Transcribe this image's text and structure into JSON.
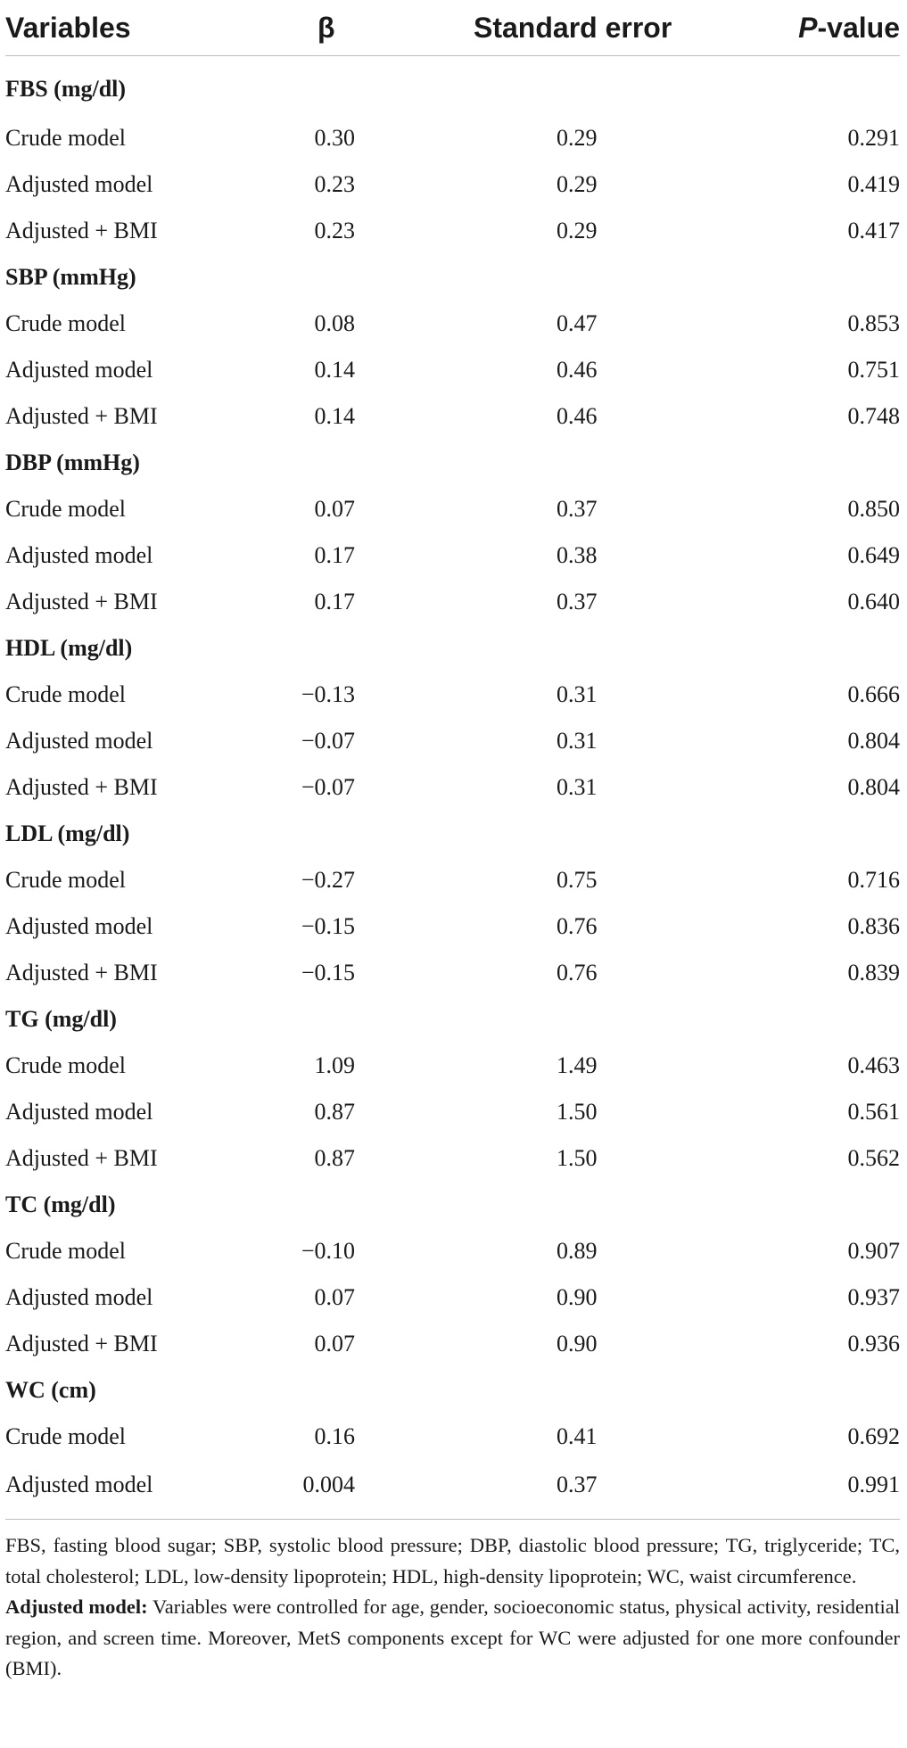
{
  "headers": {
    "variables": "Variables",
    "beta": "β",
    "se": "Standard error",
    "p_italic": "P",
    "p_rest": "-value"
  },
  "groups": [
    {
      "title": "FBS (mg/dl)",
      "rows": [
        {
          "model": "Crude model",
          "beta": "0.30",
          "se": "0.29",
          "p": "0.291"
        },
        {
          "model": "Adjusted model",
          "beta": "0.23",
          "se": "0.29",
          "p": "0.419"
        },
        {
          "model": "Adjusted + BMI",
          "beta": "0.23",
          "se": "0.29",
          "p": "0.417"
        }
      ]
    },
    {
      "title": "SBP (mmHg)",
      "rows": [
        {
          "model": "Crude model",
          "beta": "0.08",
          "se": "0.47",
          "p": "0.853"
        },
        {
          "model": "Adjusted model",
          "beta": "0.14",
          "se": "0.46",
          "p": "0.751"
        },
        {
          "model": "Adjusted + BMI",
          "beta": "0.14",
          "se": "0.46",
          "p": "0.748"
        }
      ]
    },
    {
      "title": "DBP (mmHg)",
      "rows": [
        {
          "model": "Crude model",
          "beta": "0.07",
          "se": "0.37",
          "p": "0.850"
        },
        {
          "model": "Adjusted model",
          "beta": "0.17",
          "se": "0.38",
          "p": "0.649"
        },
        {
          "model": "Adjusted + BMI",
          "beta": "0.17",
          "se": "0.37",
          "p": "0.640"
        }
      ]
    },
    {
      "title": "HDL (mg/dl)",
      "rows": [
        {
          "model": "Crude model",
          "beta": "−0.13",
          "se": "0.31",
          "p": "0.666"
        },
        {
          "model": "Adjusted model",
          "beta": "−0.07",
          "se": "0.31",
          "p": "0.804"
        },
        {
          "model": "Adjusted + BMI",
          "beta": "−0.07",
          "se": "0.31",
          "p": "0.804"
        }
      ]
    },
    {
      "title": "LDL (mg/dl)",
      "rows": [
        {
          "model": "Crude model",
          "beta": "−0.27",
          "se": "0.75",
          "p": "0.716"
        },
        {
          "model": "Adjusted model",
          "beta": "−0.15",
          "se": "0.76",
          "p": "0.836"
        },
        {
          "model": "Adjusted + BMI",
          "beta": "−0.15",
          "se": "0.76",
          "p": "0.839"
        }
      ]
    },
    {
      "title": "TG (mg/dl)",
      "rows": [
        {
          "model": "Crude model",
          "beta": "1.09",
          "se": "1.49",
          "p": "0.463"
        },
        {
          "model": "Adjusted model",
          "beta": "0.87",
          "se": "1.50",
          "p": "0.561"
        },
        {
          "model": "Adjusted + BMI",
          "beta": "0.87",
          "se": "1.50",
          "p": "0.562"
        }
      ]
    },
    {
      "title": "TC (mg/dl)",
      "rows": [
        {
          "model": "Crude model",
          "beta": "−0.10",
          "se": "0.89",
          "p": "0.907"
        },
        {
          "model": "Adjusted model",
          "beta": "0.07",
          "se": "0.90",
          "p": "0.937"
        },
        {
          "model": "Adjusted + BMI",
          "beta": "0.07",
          "se": "0.90",
          "p": "0.936"
        }
      ]
    },
    {
      "title": "WC (cm)",
      "rows": [
        {
          "model": "Crude model",
          "beta": "0.16",
          "se": "0.41",
          "p": "0.692"
        },
        {
          "model": "Adjusted model",
          "beta": "0.004",
          "se": "0.37",
          "p": "0.991"
        }
      ]
    }
  ],
  "footnote": {
    "abbreviations": "FBS, fasting blood sugar; SBP, systolic blood pressure; DBP, diastolic blood pressure; TG, triglyceride; TC, total cholesterol; LDL, low-density lipoprotein; HDL, high-density lipoprotein; WC, waist circumference.",
    "adjusted_label": "Adjusted model:",
    "adjusted_text": " Variables were controlled for age, gender, socioeconomic status, physical activity, residential region, and screen time. Moreover, MetS components except for WC were adjusted for one more confounder (BMI)."
  }
}
